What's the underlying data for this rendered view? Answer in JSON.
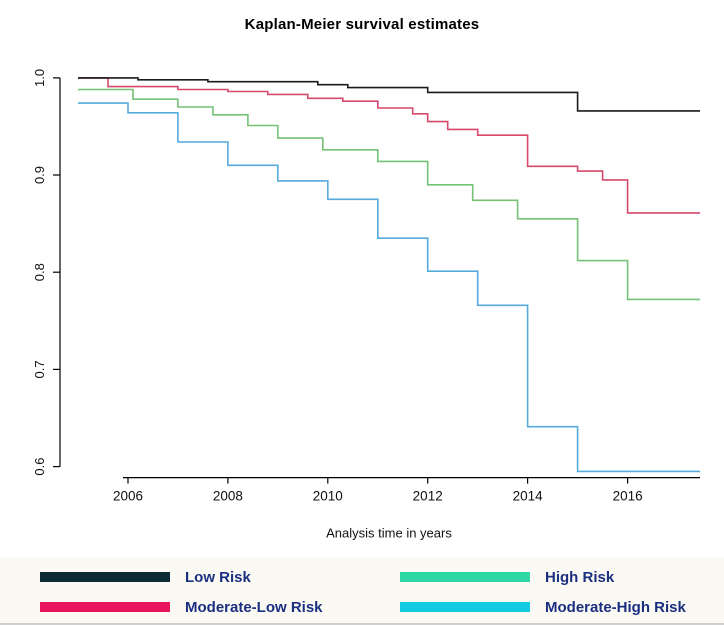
{
  "title": "Kaplan-Meier survival estimates",
  "chart_data": {
    "type": "line",
    "subtype": "step",
    "title": "Kaplan-Meier survival estimates",
    "xlabel": "Analysis time in years",
    "ylabel": "",
    "xlim": [
      2005,
      2017.45
    ],
    "ylim": [
      0.58,
      1.005
    ],
    "xticks": [
      2006,
      2008,
      2010,
      2012,
      2014,
      2016
    ],
    "yticks": [
      0.6,
      0.7,
      0.8,
      0.9,
      1.0
    ],
    "grid": false,
    "legend_position": "bottom",
    "series": [
      {
        "id": "moderate-high-risk",
        "name": "Moderate-High Risk",
        "color": "#56aadc",
        "points": [
          [
            2005,
            0.974
          ],
          [
            2006,
            0.964
          ],
          [
            2007,
            0.934
          ],
          [
            2008,
            0.91
          ],
          [
            2009,
            0.894
          ],
          [
            2010,
            0.875
          ],
          [
            2011,
            0.835
          ],
          [
            2012,
            0.801
          ],
          [
            2013,
            0.766
          ],
          [
            2014,
            0.641
          ],
          [
            2015,
            0.595
          ]
        ]
      },
      {
        "id": "high-risk",
        "name": "High Risk",
        "color": "#73c276",
        "points": [
          [
            2005,
            0.988
          ],
          [
            2006.1,
            0.978
          ],
          [
            2007,
            0.97
          ],
          [
            2007.7,
            0.962
          ],
          [
            2008.4,
            0.951
          ],
          [
            2009,
            0.938
          ],
          [
            2009.9,
            0.926
          ],
          [
            2011,
            0.914
          ],
          [
            2012,
            0.89
          ],
          [
            2012.9,
            0.874
          ],
          [
            2013.8,
            0.855
          ],
          [
            2015,
            0.812
          ],
          [
            2016,
            0.772
          ]
        ]
      },
      {
        "id": "moderate-low-risk",
        "name": "Moderate-Low Risk",
        "color": "#d6496b",
        "points": [
          [
            2005,
            1.0
          ],
          [
            2005.6,
            0.991
          ],
          [
            2007,
            0.988
          ],
          [
            2008,
            0.986
          ],
          [
            2008.8,
            0.983
          ],
          [
            2009.6,
            0.979
          ],
          [
            2010.3,
            0.976
          ],
          [
            2011,
            0.969
          ],
          [
            2011.7,
            0.963
          ],
          [
            2012,
            0.955
          ],
          [
            2012.4,
            0.947
          ],
          [
            2013,
            0.941
          ],
          [
            2014,
            0.909
          ],
          [
            2015,
            0.904
          ],
          [
            2015.5,
            0.895
          ],
          [
            2016,
            0.861
          ]
        ]
      },
      {
        "id": "low-risk",
        "name": "Low Risk",
        "color": "#1a1a1a",
        "points": [
          [
            2005,
            1.0
          ],
          [
            2006.2,
            0.998
          ],
          [
            2007.6,
            0.996
          ],
          [
            2009.8,
            0.993
          ],
          [
            2010.4,
            0.99
          ],
          [
            2012,
            0.985
          ],
          [
            2015,
            0.966
          ]
        ]
      }
    ]
  },
  "legend": {
    "items": [
      {
        "label": "Low Risk",
        "color": "#0d2b36"
      },
      {
        "label": "High Risk",
        "color": "#2fd7a4"
      },
      {
        "label": "Moderate-Low Risk",
        "color": "#e8175d"
      },
      {
        "label": "Moderate-High Risk",
        "color": "#12cbe0"
      }
    ],
    "text_color": "#1a2f80",
    "background": "#fbf9f4"
  }
}
